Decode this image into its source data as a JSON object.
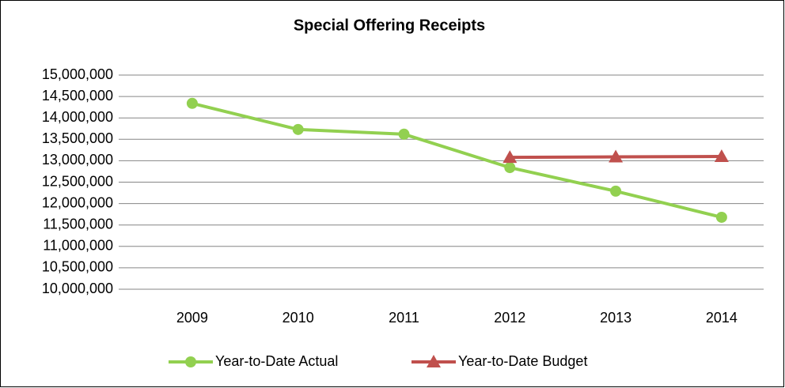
{
  "chart_data": {
    "type": "line",
    "title": "Special Offering Receipts",
    "categories": [
      "2009",
      "2010",
      "2011",
      "2012",
      "2013",
      "2014"
    ],
    "series": [
      {
        "name": "Year-to-Date Actual",
        "color": "#92d050",
        "marker": "circle",
        "values": [
          14340000,
          13730000,
          13620000,
          12840000,
          12290000,
          11680000
        ]
      },
      {
        "name": "Year-to-Date Budget",
        "color": "#c0504d",
        "marker": "triangle",
        "values": [
          null,
          null,
          null,
          13080000,
          13090000,
          13100000
        ]
      }
    ],
    "ylim": [
      10000000,
      15000000
    ],
    "yticks": [
      {
        "value": 10000000,
        "label": "10,000,000"
      },
      {
        "value": 10500000,
        "label": "10,500,000"
      },
      {
        "value": 11000000,
        "label": "11,000,000"
      },
      {
        "value": 11500000,
        "label": "11,500,000"
      },
      {
        "value": 12000000,
        "label": "12,000,000"
      },
      {
        "value": 12500000,
        "label": "12,500,000"
      },
      {
        "value": 13000000,
        "label": "13,000,000"
      },
      {
        "value": 13500000,
        "label": "13,500,000"
      },
      {
        "value": 14000000,
        "label": "14,000,000"
      },
      {
        "value": 14500000,
        "label": "14,500,000"
      },
      {
        "value": 15000000,
        "label": "15,000,000"
      }
    ],
    "grid": true,
    "legend": "bottom"
  }
}
